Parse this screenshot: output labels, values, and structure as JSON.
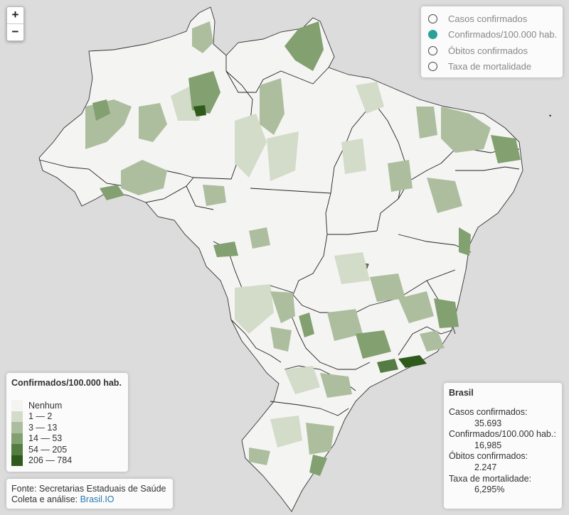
{
  "zoom": {
    "in_label": "+",
    "out_label": "−"
  },
  "layers": {
    "items": [
      {
        "label": "Casos confirmados",
        "selected": false
      },
      {
        "label": "Confirmados/100.000 hab.",
        "selected": true
      },
      {
        "label": "Óbitos confirmados",
        "selected": false
      },
      {
        "label": "Taxa de mortalidade",
        "selected": false
      }
    ]
  },
  "legend": {
    "title": "Confirmados/100.000 hab.",
    "classes": [
      {
        "label": "Nenhum",
        "color": "#f4f4f2"
      },
      {
        "label": "1 — 2",
        "color": "#d3dbc9"
      },
      {
        "label": "3 — 13",
        "color": "#adbe9f"
      },
      {
        "label": "14 — 53",
        "color": "#82a070"
      },
      {
        "label": "54 — 205",
        "color": "#557c43"
      },
      {
        "label": "206 — 784",
        "color": "#2e5a1c"
      }
    ]
  },
  "source": {
    "line1": "Fonte: Secretarias Estaduais de Saúde",
    "line2_prefix": "Coleta e análise: ",
    "line2_link": "Brasil.IO"
  },
  "info": {
    "title": "Brasil",
    "casos_label": "Casos confirmados:",
    "casos_value": "35.693",
    "conf100_label": "Confirmados/100.000 hab.:",
    "conf100_value": "16,985",
    "obitos_label": "Óbitos confirmados:",
    "obitos_value": "2.247",
    "taxa_label": "Taxa de mortalidade:",
    "taxa_value": "6,295%"
  },
  "colors": {
    "background": "#dcdcdc",
    "land": "#f4f4f2",
    "border": "#222222",
    "accent": "#2aa198"
  }
}
